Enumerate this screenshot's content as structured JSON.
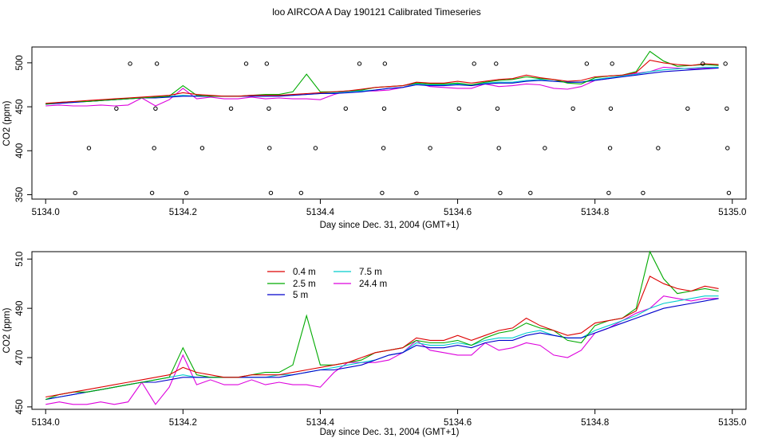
{
  "figure_title": "loo AIRCOA A  Day 190121  Calibrated Timeseries",
  "colors": {
    "0.4 m": "#dd0000",
    "2.5 m": "#00aa00",
    "5 m": "#0000cc",
    "7.5 m": "#00cccc",
    "24.4 m": "#dd00dd",
    "raw": "#000000"
  },
  "chart_data": [
    {
      "type": "scatter",
      "xlabel": "Day since Dec. 31, 2004 (GMT+1)",
      "ylabel": "CO2 (ppm)",
      "xlim": [
        5133.98,
        5135.02
      ],
      "ylim": [
        345,
        518
      ],
      "xticks": [
        5134.0,
        5134.2,
        5134.4,
        5134.6,
        5134.8,
        5135.0
      ],
      "xtick_labels": [
        "5134.0",
        "5134.2",
        "5134.4",
        "5134.6",
        "5134.8",
        "5135.0"
      ],
      "yticks": [
        350,
        400,
        450,
        500
      ],
      "ytick_labels": [
        "350",
        "400",
        "450",
        "500"
      ],
      "raw_points": [
        {
          "x": 5134.043,
          "y": 352
        },
        {
          "x": 5134.063,
          "y": 403
        },
        {
          "x": 5134.103,
          "y": 448
        },
        {
          "x": 5134.123,
          "y": 499
        },
        {
          "x": 5134.155,
          "y": 352
        },
        {
          "x": 5134.158,
          "y": 403
        },
        {
          "x": 5134.16,
          "y": 448
        },
        {
          "x": 5134.162,
          "y": 499
        },
        {
          "x": 5134.205,
          "y": 352
        },
        {
          "x": 5134.228,
          "y": 403
        },
        {
          "x": 5134.27,
          "y": 448
        },
        {
          "x": 5134.292,
          "y": 499
        },
        {
          "x": 5134.322,
          "y": 499
        },
        {
          "x": 5134.325,
          "y": 448
        },
        {
          "x": 5134.326,
          "y": 403
        },
        {
          "x": 5134.328,
          "y": 352
        },
        {
          "x": 5134.372,
          "y": 352
        },
        {
          "x": 5134.393,
          "y": 403
        },
        {
          "x": 5134.437,
          "y": 448
        },
        {
          "x": 5134.457,
          "y": 499
        },
        {
          "x": 5134.49,
          "y": 352
        },
        {
          "x": 5134.492,
          "y": 403
        },
        {
          "x": 5134.493,
          "y": 448
        },
        {
          "x": 5134.494,
          "y": 499
        },
        {
          "x": 5134.54,
          "y": 352
        },
        {
          "x": 5134.56,
          "y": 403
        },
        {
          "x": 5134.602,
          "y": 448
        },
        {
          "x": 5134.624,
          "y": 499
        },
        {
          "x": 5134.656,
          "y": 499
        },
        {
          "x": 5134.658,
          "y": 448
        },
        {
          "x": 5134.66,
          "y": 403
        },
        {
          "x": 5134.662,
          "y": 352
        },
        {
          "x": 5134.706,
          "y": 352
        },
        {
          "x": 5134.727,
          "y": 403
        },
        {
          "x": 5134.768,
          "y": 448
        },
        {
          "x": 5134.788,
          "y": 499
        },
        {
          "x": 5134.82,
          "y": 352
        },
        {
          "x": 5134.822,
          "y": 403
        },
        {
          "x": 5134.823,
          "y": 448
        },
        {
          "x": 5134.825,
          "y": 499
        },
        {
          "x": 5134.87,
          "y": 352
        },
        {
          "x": 5134.892,
          "y": 403
        },
        {
          "x": 5134.935,
          "y": 448
        },
        {
          "x": 5134.957,
          "y": 499
        },
        {
          "x": 5134.99,
          "y": 499
        },
        {
          "x": 5134.992,
          "y": 448
        },
        {
          "x": 5134.993,
          "y": 403
        },
        {
          "x": 5134.995,
          "y": 352
        }
      ]
    },
    {
      "type": "line",
      "xlabel": "Day since Dec. 31, 2004 (GMT+1)",
      "ylabel": "CO2 (ppm)",
      "xlim": [
        5133.98,
        5135.02
      ],
      "ylim": [
        449,
        513
      ],
      "xticks": [
        5134.0,
        5134.2,
        5134.4,
        5134.6,
        5134.8,
        5135.0
      ],
      "xtick_labels": [
        "5134.0",
        "5134.2",
        "5134.4",
        "5134.6",
        "5134.8",
        "5135.0"
      ],
      "yticks": [
        450,
        470,
        490,
        510
      ],
      "ytick_labels": [
        "450",
        "470",
        "490",
        "510"
      ],
      "legend_labels": [
        "0.4 m",
        "2.5 m",
        "5 m",
        "7.5 m",
        "24.4 m"
      ],
      "legend_position": "top-left",
      "x": [
        5134.0,
        5134.02,
        5134.04,
        5134.06,
        5134.08,
        5134.1,
        5134.12,
        5134.14,
        5134.16,
        5134.18,
        5134.2,
        5134.22,
        5134.24,
        5134.26,
        5134.28,
        5134.3,
        5134.32,
        5134.34,
        5134.36,
        5134.38,
        5134.4,
        5134.42,
        5134.44,
        5134.46,
        5134.48,
        5134.5,
        5134.52,
        5134.54,
        5134.56,
        5134.58,
        5134.6,
        5134.62,
        5134.64,
        5134.66,
        5134.68,
        5134.7,
        5134.72,
        5134.74,
        5134.76,
        5134.78,
        5134.8,
        5134.82,
        5134.84,
        5134.86,
        5134.88,
        5134.9,
        5134.92,
        5134.94,
        5134.96,
        5134.98
      ],
      "series": [
        {
          "name": "0.4 m",
          "values": [
            454,
            455,
            456,
            457,
            458,
            459,
            460,
            461,
            462,
            463,
            466,
            464,
            463,
            462,
            462,
            463,
            463,
            463,
            464,
            465,
            466,
            467,
            468,
            470,
            472,
            473,
            474,
            478,
            477,
            477,
            479,
            477,
            479,
            481,
            482,
            486,
            483,
            481,
            479,
            480,
            484,
            485,
            486,
            489,
            503,
            500,
            498,
            497,
            499,
            498
          ]
        },
        {
          "name": "2.5 m",
          "values": [
            453,
            455,
            456,
            456,
            457,
            458,
            459,
            460,
            461,
            462,
            474,
            463,
            462,
            462,
            462,
            463,
            464,
            464,
            467,
            487,
            467,
            467,
            468,
            469,
            472,
            473,
            474,
            477,
            476,
            476,
            477,
            475,
            478,
            480,
            481,
            484,
            482,
            481,
            477,
            476,
            483,
            485,
            486,
            490,
            513,
            502,
            496,
            497,
            498,
            497
          ]
        },
        {
          "name": "5 m",
          "values": [
            453,
            454,
            455,
            456,
            457,
            458,
            459,
            460,
            460,
            461,
            462,
            462,
            462,
            462,
            462,
            462,
            462,
            462,
            463,
            464,
            465,
            465,
            466,
            467,
            469,
            471,
            472,
            475,
            474,
            474,
            475,
            474,
            476,
            477,
            477,
            479,
            480,
            479,
            478,
            478,
            480,
            482,
            484,
            486,
            488,
            490,
            491,
            492,
            493,
            494
          ]
        },
        {
          "name": "7.5 m",
          "values": [
            453,
            454,
            455,
            456,
            457,
            458,
            459,
            460,
            461,
            462,
            463,
            462,
            462,
            462,
            462,
            462,
            462,
            463,
            463,
            464,
            465,
            466,
            467,
            468,
            469,
            471,
            472,
            476,
            475,
            475,
            476,
            475,
            477,
            478,
            478,
            480,
            481,
            479,
            478,
            478,
            481,
            483,
            485,
            487,
            490,
            492,
            493,
            494,
            495,
            495
          ]
        },
        {
          "name": "24.4 m",
          "values": [
            451,
            452,
            451,
            451,
            452,
            451,
            452,
            460,
            451,
            458,
            471,
            459,
            461,
            459,
            459,
            461,
            459,
            460,
            459,
            459,
            458,
            464,
            468,
            468,
            468,
            469,
            472,
            477,
            473,
            472,
            471,
            471,
            476,
            473,
            474,
            476,
            475,
            471,
            470,
            473,
            480,
            482,
            485,
            488,
            490,
            495,
            494,
            493,
            494,
            494
          ]
        }
      ]
    }
  ]
}
